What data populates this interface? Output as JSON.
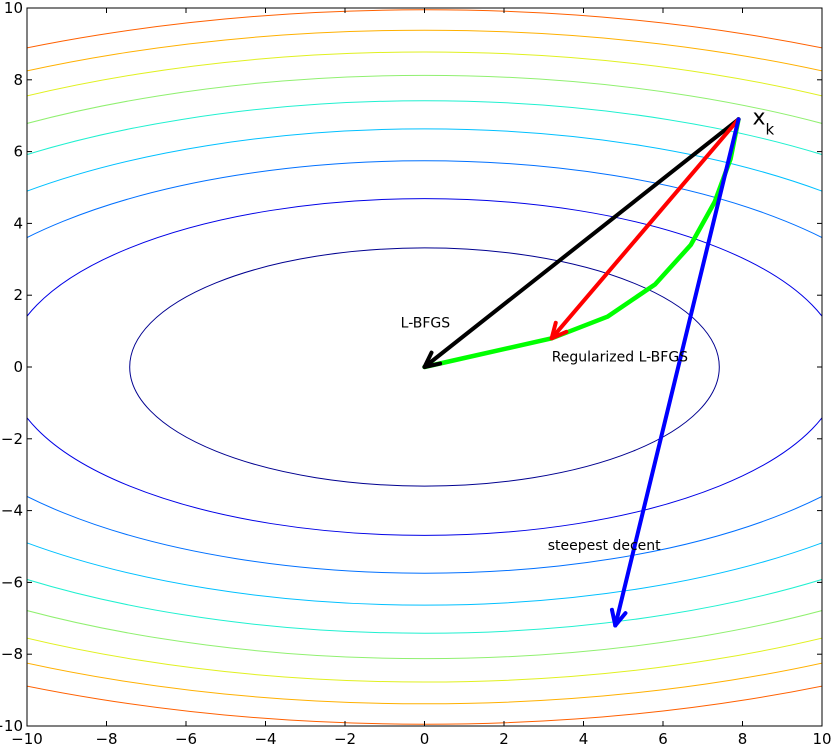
{
  "chart_data": {
    "type": "line",
    "title": "",
    "xlabel": "",
    "ylabel": "",
    "xlim": [
      -10,
      10
    ],
    "ylim": [
      -10,
      10
    ],
    "xticks": [
      -10,
      -8,
      -6,
      -4,
      -2,
      0,
      2,
      4,
      6,
      8,
      10
    ],
    "yticks": [
      -10,
      -8,
      -6,
      -4,
      -2,
      0,
      2,
      4,
      6,
      8,
      10
    ],
    "x_tick_labels": [
      "−10",
      "−8",
      "−6",
      "−4",
      "−2",
      "0",
      "2",
      "4",
      "6",
      "8",
      "10"
    ],
    "y_tick_labels": [
      "−10",
      "−8",
      "−6",
      "−4",
      "−2",
      "0",
      "2",
      "4",
      "6",
      "8",
      "10"
    ],
    "grid": false,
    "contours": {
      "function": "f(x, y) = x^2 + 5 y^2",
      "levels": [
        55,
        110,
        165,
        220,
        275,
        330,
        385,
        440,
        495
      ],
      "colors": [
        "#000090",
        "#0000e6",
        "#0070ff",
        "#00c0ff",
        "#20f0d0",
        "#90f070",
        "#e0f020",
        "#ffb000",
        "#ff6000",
        "#e00000",
        "#a00000"
      ]
    },
    "start_point": {
      "x": 7.9,
      "y": 6.9,
      "label": "x",
      "label_subscript": "k"
    },
    "arrows": [
      {
        "name": "L-BFGS",
        "color": "#000000",
        "from": [
          7.9,
          6.9
        ],
        "to": [
          0,
          0
        ]
      },
      {
        "name": "",
        "color": "#ff0000",
        "from": [
          7.9,
          6.9
        ],
        "to": [
          3.2,
          0.8
        ]
      },
      {
        "name": "steepest decent",
        "color": "#0000ff",
        "from": [
          7.9,
          6.9
        ],
        "to": [
          4.8,
          -7.2
        ]
      }
    ],
    "curve": {
      "name": "Regularized L-BFGS",
      "color": "#00ff00",
      "x": [
        7.9,
        7.7,
        7.3,
        6.7,
        5.8,
        4.6,
        3.2,
        2.0,
        1.0,
        0.0
      ],
      "y": [
        6.9,
        5.8,
        4.6,
        3.4,
        2.3,
        1.4,
        0.8,
        0.5,
        0.25,
        0.0
      ]
    },
    "annotations": [
      {
        "text": "L-BFGS",
        "x": -0.6,
        "y": 1.1
      },
      {
        "text": "Regularized L-BFGS",
        "x": 3.2,
        "y": 0.15
      },
      {
        "text": "steepest decent",
        "x": 3.1,
        "y": -5.1
      }
    ]
  }
}
